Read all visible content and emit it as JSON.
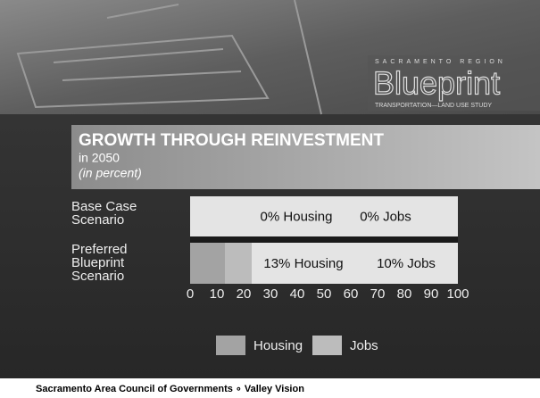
{
  "header": {
    "region": "SACRAMENTO REGION",
    "logo": "Blueprint",
    "study": "TRANSPORTATION—LAND USE STUDY"
  },
  "chart_data": {
    "type": "stacked-bar-horizontal",
    "title": "GROWTH THROUGH REINVESTMENT",
    "subtitle": "in 2050",
    "unit_note": "(in percent)",
    "categories": [
      "Base Case Scenario",
      "Preferred Blueprint Scenario"
    ],
    "series": [
      {
        "name": "Housing",
        "color": "#a3a3a3",
        "values": [
          0,
          13
        ],
        "value_labels": [
          "0% Housing",
          "13% Housing"
        ]
      },
      {
        "name": "Jobs",
        "color": "#bcbcbc",
        "values": [
          0,
          10
        ],
        "value_labels": [
          "0% Jobs",
          "10% Jobs"
        ]
      }
    ],
    "xlim": [
      0,
      100
    ],
    "xticks": [
      0,
      10,
      20,
      30,
      40,
      50,
      60,
      70,
      80,
      90,
      100
    ],
    "grid": false
  },
  "footer": {
    "text": "Sacramento Area Council of Governments ∘ Valley Vision"
  }
}
